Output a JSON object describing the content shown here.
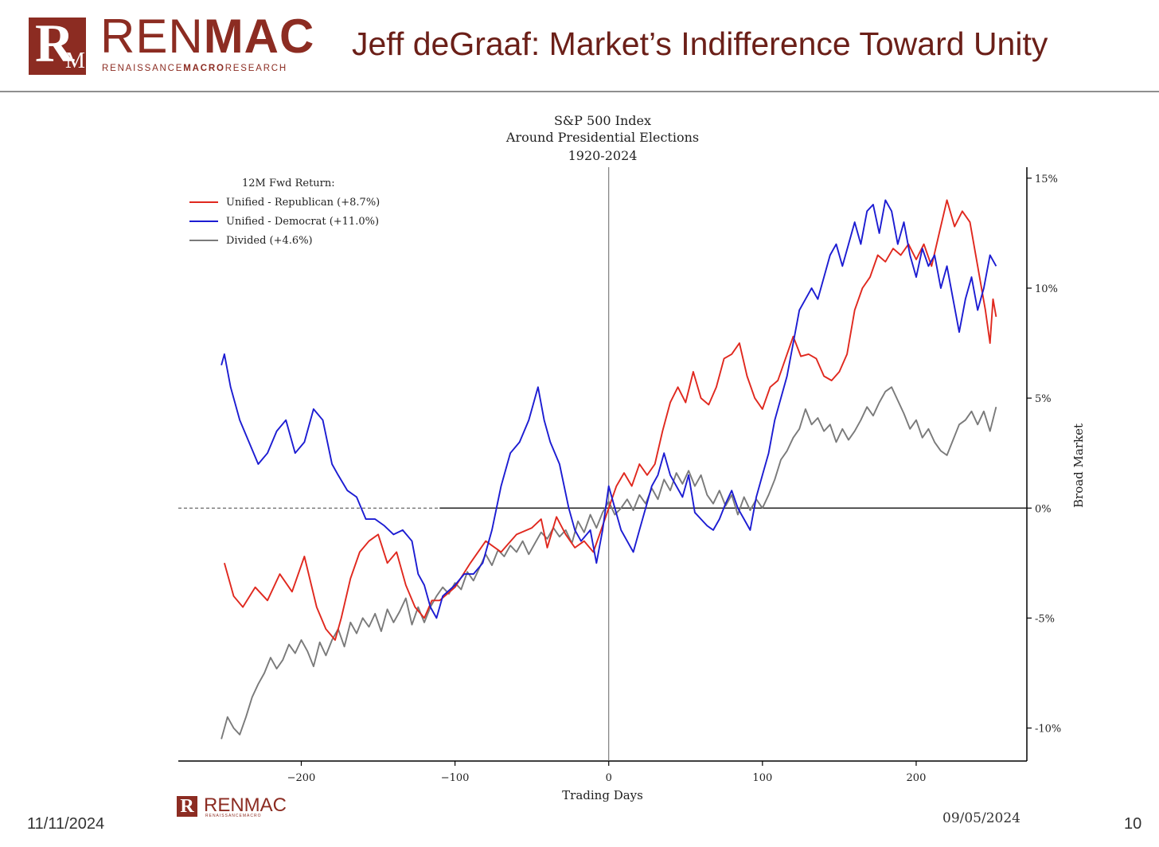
{
  "header": {
    "logo_mark": "R",
    "logo_mark_small": "M",
    "logo_word_light": "REN",
    "logo_word_bold": "MAC",
    "logo_sub_a": "RENAISSANCE",
    "logo_sub_b": "MACRO",
    "logo_sub_c": "RESEARCH",
    "title": "Jeff deGraaf: Market’s Indifference Toward Unity"
  },
  "footer": {
    "date_left": "11/11/2024",
    "date_right": "09/05/2024",
    "page": "10",
    "mini_logo_word": "RENMAC",
    "mini_logo_sub": "RENAISSANCEMACRO"
  },
  "colors": {
    "brand": "#8c2c22",
    "republican": "#e0281e",
    "democrat": "#1c1cd2",
    "divided": "#7a7a7a"
  },
  "chart_data": {
    "type": "line",
    "title_lines": [
      "S&P 500 Index",
      "Around Presidential Elections",
      "1920-2024"
    ],
    "xlabel": "Trading Days",
    "ylabel": "Broad Market",
    "xlim": [
      -280,
      272
    ],
    "ylim": [
      -11.5,
      15.5
    ],
    "x_ticks": [
      -200,
      -100,
      0,
      100,
      200
    ],
    "x_tick_labels": [
      "−200",
      "−100",
      "0",
      "100",
      "200"
    ],
    "y_ticks": [
      15,
      10,
      5,
      0,
      -5,
      -10
    ],
    "y_tick_labels": [
      "15%",
      "10%",
      "5%",
      "0%",
      "-5%",
      "-10%"
    ],
    "y_axis_side": "right",
    "legend_title": "12M Fwd Return:",
    "legend_placement": "top-left",
    "reference_lines": {
      "horizontal_y": 0,
      "vertical_x": 0
    },
    "series": [
      {
        "name": "Unified - Republican (+8.7%)",
        "color": "#e0281e",
        "x": [
          -250,
          -244,
          -238,
          -230,
          -222,
          -214,
          -206,
          -198,
          -190,
          -184,
          -178,
          -174,
          -168,
          -162,
          -156,
          -150,
          -144,
          -138,
          -132,
          -126,
          -120,
          -115,
          -110,
          -100,
          -90,
          -80,
          -70,
          -60,
          -50,
          -44,
          -40,
          -34,
          -28,
          -22,
          -16,
          -10,
          -5,
          0,
          5,
          10,
          15,
          20,
          25,
          30,
          35,
          40,
          45,
          50,
          55,
          60,
          65,
          70,
          75,
          80,
          85,
          90,
          95,
          100,
          105,
          110,
          115,
          120,
          125,
          130,
          135,
          140,
          145,
          150,
          155,
          160,
          165,
          170,
          175,
          180,
          185,
          190,
          195,
          200,
          205,
          210,
          215,
          220,
          225,
          230,
          235,
          240,
          245,
          248,
          250,
          252
        ],
        "y": [
          -2.5,
          -4.0,
          -4.5,
          -3.6,
          -4.2,
          -3.0,
          -3.8,
          -2.2,
          -4.5,
          -5.5,
          -6.0,
          -5.0,
          -3.2,
          -2.0,
          -1.5,
          -1.2,
          -2.5,
          -2.0,
          -3.5,
          -4.5,
          -5.0,
          -4.2,
          -4.2,
          -3.6,
          -2.5,
          -1.5,
          -2.0,
          -1.2,
          -0.9,
          -0.5,
          -1.8,
          -0.4,
          -1.2,
          -1.8,
          -1.5,
          -2.0,
          -1.0,
          0.0,
          1.0,
          1.6,
          1.0,
          2.0,
          1.5,
          2.0,
          3.5,
          4.8,
          5.5,
          4.8,
          6.2,
          5.0,
          4.7,
          5.5,
          6.8,
          7.0,
          7.5,
          6.0,
          5.0,
          4.5,
          5.5,
          5.8,
          6.8,
          7.8,
          6.9,
          7.0,
          6.8,
          6.0,
          5.8,
          6.2,
          7.0,
          9.0,
          10.0,
          10.5,
          11.5,
          11.2,
          11.8,
          11.5,
          12.0,
          11.3,
          12.0,
          11.0,
          12.5,
          14.0,
          12.8,
          13.5,
          13.0,
          11.0,
          9.0,
          7.5,
          9.5,
          8.7
        ]
      },
      {
        "name": "Unified - Democrat (+11.0%)",
        "color": "#1c1cd2",
        "x": [
          -252,
          -250,
          -246,
          -240,
          -234,
          -228,
          -222,
          -216,
          -210,
          -204,
          -198,
          -192,
          -186,
          -180,
          -176,
          -170,
          -164,
          -158,
          -152,
          -146,
          -140,
          -134,
          -128,
          -124,
          -120,
          -116,
          -112,
          -108,
          -100,
          -94,
          -88,
          -82,
          -76,
          -70,
          -64,
          -58,
          -52,
          -46,
          -42,
          -38,
          -32,
          -26,
          -22,
          -18,
          -12,
          -8,
          -4,
          0,
          4,
          8,
          12,
          16,
          20,
          24,
          28,
          32,
          36,
          40,
          44,
          48,
          52,
          56,
          60,
          64,
          68,
          72,
          76,
          80,
          84,
          88,
          92,
          96,
          100,
          104,
          108,
          112,
          116,
          120,
          124,
          128,
          132,
          136,
          140,
          144,
          148,
          152,
          156,
          160,
          164,
          168,
          172,
          176,
          180,
          184,
          188,
          192,
          196,
          200,
          204,
          208,
          212,
          216,
          220,
          224,
          228,
          232,
          236,
          240,
          244,
          248,
          252
        ],
        "y": [
          6.5,
          7.0,
          5.5,
          4.0,
          3.0,
          2.0,
          2.5,
          3.5,
          4.0,
          2.5,
          3.0,
          4.5,
          4.0,
          2.0,
          1.5,
          0.8,
          0.5,
          -0.5,
          -0.5,
          -0.8,
          -1.2,
          -1.0,
          -1.5,
          -3.0,
          -3.5,
          -4.5,
          -5.0,
          -4.0,
          -3.5,
          -3.0,
          -3.0,
          -2.5,
          -1.0,
          1.0,
          2.5,
          3.0,
          4.0,
          5.5,
          4.0,
          3.0,
          2.0,
          0.0,
          -1.0,
          -1.5,
          -1.0,
          -2.5,
          -1.0,
          1.0,
          0.0,
          -1.0,
          -1.5,
          -2.0,
          -1.0,
          0.0,
          1.0,
          1.5,
          2.5,
          1.5,
          1.0,
          0.5,
          1.5,
          -0.2,
          -0.5,
          -0.8,
          -1.0,
          -0.5,
          0.2,
          0.8,
          0.0,
          -0.5,
          -1.0,
          0.5,
          1.5,
          2.5,
          4.0,
          5.0,
          6.0,
          7.5,
          9.0,
          9.5,
          10.0,
          9.5,
          10.5,
          11.5,
          12.0,
          11.0,
          12.0,
          13.0,
          12.0,
          13.5,
          13.8,
          12.5,
          14.0,
          13.5,
          12.0,
          13.0,
          11.5,
          10.5,
          11.8,
          11.0,
          11.5,
          10.0,
          11.0,
          9.5,
          8.0,
          9.5,
          10.5,
          9.0,
          10.0,
          11.5,
          11.0
        ]
      },
      {
        "name": "Divided (+4.6%)",
        "color": "#7a7a7a",
        "x": [
          -252,
          -248,
          -244,
          -240,
          -236,
          -232,
          -228,
          -224,
          -220,
          -216,
          -212,
          -208,
          -204,
          -200,
          -196,
          -192,
          -188,
          -184,
          -180,
          -176,
          -172,
          -168,
          -164,
          -160,
          -156,
          -152,
          -148,
          -144,
          -140,
          -136,
          -132,
          -128,
          -124,
          -120,
          -116,
          -112,
          -108,
          -104,
          -100,
          -96,
          -92,
          -88,
          -84,
          -80,
          -76,
          -72,
          -68,
          -64,
          -60,
          -56,
          -52,
          -48,
          -44,
          -40,
          -36,
          -32,
          -28,
          -24,
          -20,
          -16,
          -12,
          -8,
          -4,
          0,
          4,
          8,
          12,
          16,
          20,
          24,
          28,
          32,
          36,
          40,
          44,
          48,
          52,
          56,
          60,
          64,
          68,
          72,
          76,
          80,
          84,
          88,
          92,
          96,
          100,
          104,
          108,
          112,
          116,
          120,
          124,
          128,
          132,
          136,
          140,
          144,
          148,
          152,
          156,
          160,
          164,
          168,
          172,
          176,
          180,
          184,
          188,
          192,
          196,
          200,
          204,
          208,
          212,
          216,
          220,
          224,
          228,
          232,
          236,
          240,
          244,
          248,
          252
        ],
        "y": [
          -10.5,
          -9.5,
          -10.0,
          -10.3,
          -9.5,
          -8.6,
          -8.0,
          -7.5,
          -6.8,
          -7.3,
          -6.9,
          -6.2,
          -6.6,
          -6.0,
          -6.5,
          -7.2,
          -6.1,
          -6.7,
          -6.0,
          -5.5,
          -6.3,
          -5.2,
          -5.7,
          -5.0,
          -5.4,
          -4.8,
          -5.6,
          -4.6,
          -5.2,
          -4.7,
          -4.1,
          -5.3,
          -4.5,
          -5.2,
          -4.5,
          -4.0,
          -3.6,
          -3.9,
          -3.4,
          -3.7,
          -2.9,
          -3.3,
          -2.7,
          -2.1,
          -2.6,
          -1.9,
          -2.2,
          -1.7,
          -2.0,
          -1.5,
          -2.1,
          -1.6,
          -1.1,
          -1.4,
          -0.9,
          -1.3,
          -1.0,
          -1.6,
          -0.6,
          -1.1,
          -0.3,
          -0.9,
          -0.2,
          0.3,
          -0.3,
          0.0,
          0.4,
          -0.1,
          0.6,
          0.2,
          0.9,
          0.4,
          1.3,
          0.8,
          1.6,
          1.1,
          1.7,
          1.0,
          1.5,
          0.6,
          0.2,
          0.8,
          0.1,
          0.6,
          -0.3,
          0.5,
          -0.1,
          0.4,
          0.0,
          0.6,
          1.3,
          2.2,
          2.6,
          3.2,
          3.6,
          4.5,
          3.8,
          4.1,
          3.5,
          3.8,
          3.0,
          3.6,
          3.1,
          3.5,
          4.0,
          4.6,
          4.2,
          4.8,
          5.3,
          5.5,
          4.9,
          4.3,
          3.6,
          4.0,
          3.2,
          3.6,
          3.0,
          2.6,
          2.4,
          3.1,
          3.8,
          4.0,
          4.4,
          3.8,
          4.4,
          3.5,
          4.6
        ]
      }
    ]
  }
}
